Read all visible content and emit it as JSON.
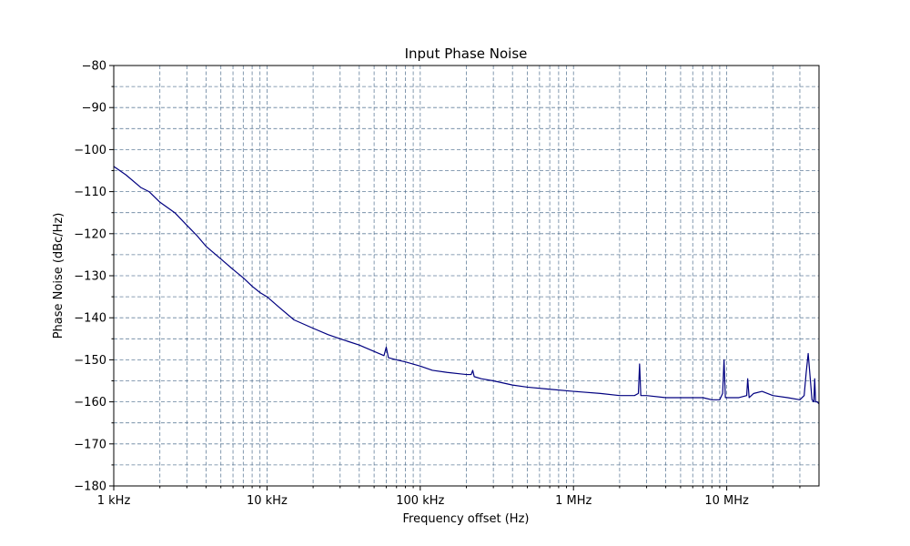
{
  "chart_data": {
    "type": "line",
    "title": "Input Phase Noise",
    "xlabel": "Frequency offset (Hz)",
    "ylabel": "Phase Noise (dBc/Hz)",
    "xscale": "log",
    "xlim": [
      1000,
      40000000
    ],
    "ylim": [
      -180,
      -80
    ],
    "grid": true,
    "x_ticks": [
      {
        "value": 1000,
        "label": "1 kHz"
      },
      {
        "value": 10000,
        "label": "10 kHz"
      },
      {
        "value": 100000,
        "label": "100 kHz"
      },
      {
        "value": 1000000,
        "label": "1 MHz"
      },
      {
        "value": 10000000,
        "label": "10 MHz"
      }
    ],
    "y_ticks": [
      -80,
      -90,
      -100,
      -110,
      -120,
      -130,
      -140,
      -150,
      -160,
      -170,
      -180
    ],
    "series": [
      {
        "color": "#000080",
        "x": [
          1000,
          1200,
          1500,
          1700,
          2000,
          2500,
          3000,
          3500,
          4000,
          5000,
          6000,
          7000,
          8000,
          9000,
          10000,
          12000,
          15000,
          20000,
          25000,
          30000,
          40000,
          50000,
          58000,
          60000,
          62000,
          70000,
          80000,
          100000,
          120000,
          150000,
          200000,
          215000,
          220000,
          225000,
          250000,
          300000,
          400000,
          500000,
          700000,
          1000000,
          1500000,
          2000000,
          2500000,
          2650000,
          2700000,
          2750000,
          3000000,
          4000000,
          5000000,
          6000000,
          7000000,
          8000000,
          9000000,
          9400000,
          9600000,
          9800000,
          10000000,
          12000000,
          13500000,
          13700000,
          14000000,
          15000000,
          17000000,
          20000000,
          25000000,
          30000000,
          32000000,
          33000000,
          34000000,
          36000000,
          37000000,
          37500000,
          38000000,
          39000000,
          40000000
        ],
        "y": [
          -104,
          -106,
          -109,
          -110,
          -112.5,
          -115,
          -118,
          -120.5,
          -123,
          -126,
          -128.5,
          -130.5,
          -132.5,
          -134,
          -135,
          -137.5,
          -140.5,
          -142.5,
          -144,
          -145,
          -146.5,
          -148,
          -149,
          -147,
          -149.5,
          -150,
          -150.5,
          -151.5,
          -152.5,
          -153,
          -153.5,
          -153.5,
          -152.5,
          -154,
          -154.5,
          -155,
          -156,
          -156.5,
          -157,
          -157.5,
          -158,
          -158.5,
          -158.5,
          -158,
          -151,
          -158.5,
          -158.5,
          -159,
          -159,
          -159,
          -159,
          -159.5,
          -159.5,
          -158,
          -150,
          -159,
          -159,
          -159,
          -158.5,
          -154.5,
          -159,
          -158,
          -157.5,
          -158.5,
          -159,
          -159.5,
          -158.5,
          -153,
          -148.5,
          -159.5,
          -160,
          -154.5,
          -160,
          -160,
          -160.5
        ]
      }
    ]
  }
}
